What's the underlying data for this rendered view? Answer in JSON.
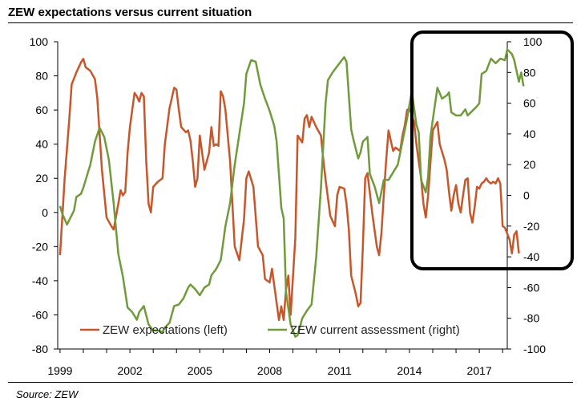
{
  "title": "ZEW expectations versus current situation",
  "source": "Source: ZEW",
  "colors": {
    "expectations": "#c8562b",
    "current": "#6f9b3b",
    "axis": "#000000",
    "highlight": "#000000"
  },
  "chart_data": {
    "type": "line",
    "title": "ZEW expectations versus current situation",
    "x_tick_labels": [
      "1999",
      "2002",
      "2005",
      "2008",
      "2011",
      "2014",
      "2017"
    ],
    "x_ticks": [
      1999,
      2002,
      2005,
      2008,
      2011,
      2014,
      2017
    ],
    "xlim": [
      1998.9,
      2018.2
    ],
    "left_axis": {
      "ylim": [
        -80,
        100
      ],
      "ticks": [
        -80,
        -60,
        -40,
        -20,
        0,
        20,
        40,
        60,
        80,
        100
      ]
    },
    "right_axis": {
      "ylim": [
        -100,
        100
      ],
      "ticks": [
        -100,
        -80,
        -60,
        -40,
        -20,
        0,
        20,
        40,
        60,
        80,
        100
      ]
    },
    "legend": [
      "ZEW expectations (left)",
      "ZEW current assessment (right)"
    ],
    "legend_position": "bottom-center",
    "annotation": "highlight box around 2014-2018",
    "series": [
      {
        "name": "ZEW expectations (left)",
        "axis": "left",
        "points": [
          [
            1999.0,
            -25
          ],
          [
            1999.2,
            20
          ],
          [
            1999.4,
            55
          ],
          [
            1999.5,
            75
          ],
          [
            1999.7,
            82
          ],
          [
            1999.9,
            88
          ],
          [
            2000.0,
            90
          ],
          [
            2000.1,
            85
          ],
          [
            2000.3,
            83
          ],
          [
            2000.5,
            78
          ],
          [
            2000.6,
            67
          ],
          [
            2000.8,
            25
          ],
          [
            2001.0,
            -3
          ],
          [
            2001.2,
            -8
          ],
          [
            2001.3,
            -10
          ],
          [
            2001.5,
            5
          ],
          [
            2001.6,
            13
          ],
          [
            2001.7,
            10
          ],
          [
            2001.8,
            12
          ],
          [
            2001.9,
            35
          ],
          [
            2002.0,
            50
          ],
          [
            2002.2,
            70
          ],
          [
            2002.3,
            68
          ],
          [
            2002.4,
            65
          ],
          [
            2002.5,
            70
          ],
          [
            2002.6,
            68
          ],
          [
            2002.7,
            30
          ],
          [
            2002.8,
            5
          ],
          [
            2002.9,
            0
          ],
          [
            2003.0,
            15
          ],
          [
            2003.2,
            18
          ],
          [
            2003.4,
            20
          ],
          [
            2003.5,
            40
          ],
          [
            2003.7,
            61
          ],
          [
            2003.9,
            73
          ],
          [
            2004.0,
            72
          ],
          [
            2004.1,
            60
          ],
          [
            2004.2,
            50
          ],
          [
            2004.4,
            47
          ],
          [
            2004.5,
            48
          ],
          [
            2004.6,
            42
          ],
          [
            2004.7,
            30
          ],
          [
            2004.8,
            15
          ],
          [
            2004.9,
            20
          ],
          [
            2005.0,
            45
          ],
          [
            2005.2,
            25
          ],
          [
            2005.4,
            35
          ],
          [
            2005.5,
            50
          ],
          [
            2005.6,
            39
          ],
          [
            2005.7,
            40
          ],
          [
            2005.8,
            39
          ],
          [
            2005.9,
            71
          ],
          [
            2006.0,
            68
          ],
          [
            2006.1,
            60
          ],
          [
            2006.3,
            30
          ],
          [
            2006.5,
            -20
          ],
          [
            2006.7,
            -28
          ],
          [
            2006.9,
            -4
          ],
          [
            2007.0,
            20
          ],
          [
            2007.1,
            24
          ],
          [
            2007.3,
            15
          ],
          [
            2007.5,
            -20
          ],
          [
            2007.7,
            -25
          ],
          [
            2007.8,
            -39
          ],
          [
            2008.0,
            -41
          ],
          [
            2008.1,
            -33
          ],
          [
            2008.3,
            -53
          ],
          [
            2008.4,
            -63
          ],
          [
            2008.5,
            -55
          ],
          [
            2008.6,
            -63
          ],
          [
            2008.7,
            -45
          ],
          [
            2008.8,
            -37
          ],
          [
            2008.9,
            -60
          ],
          [
            2009.1,
            -15
          ],
          [
            2009.2,
            45
          ],
          [
            2009.4,
            41
          ],
          [
            2009.5,
            55
          ],
          [
            2009.6,
            57
          ],
          [
            2009.7,
            50
          ],
          [
            2009.8,
            56
          ],
          [
            2010.0,
            50
          ],
          [
            2010.2,
            45
          ],
          [
            2010.3,
            31
          ],
          [
            2010.4,
            19
          ],
          [
            2010.6,
            -2
          ],
          [
            2010.8,
            -8
          ],
          [
            2010.9,
            10
          ],
          [
            2011.0,
            15
          ],
          [
            2011.2,
            14
          ],
          [
            2011.3,
            5
          ],
          [
            2011.4,
            -10
          ],
          [
            2011.5,
            -37
          ],
          [
            2011.7,
            -48
          ],
          [
            2011.8,
            -55
          ],
          [
            2011.9,
            -53
          ],
          [
            2012.0,
            -20
          ],
          [
            2012.1,
            20
          ],
          [
            2012.2,
            23
          ],
          [
            2012.4,
            0
          ],
          [
            2012.6,
            -20
          ],
          [
            2012.7,
            -25
          ],
          [
            2012.8,
            -12
          ],
          [
            2012.9,
            10
          ],
          [
            2013.0,
            30
          ],
          [
            2013.1,
            48
          ],
          [
            2013.3,
            36
          ],
          [
            2013.4,
            38
          ],
          [
            2013.6,
            36
          ],
          [
            2013.7,
            45
          ],
          [
            2013.8,
            51
          ],
          [
            2013.9,
            60
          ],
          [
            2014.0,
            61
          ],
          [
            2014.2,
            53
          ],
          [
            2014.3,
            40
          ],
          [
            2014.4,
            30
          ],
          [
            2014.5,
            20
          ],
          [
            2014.6,
            5
          ],
          [
            2014.7,
            -3
          ],
          [
            2014.8,
            10
          ],
          [
            2014.9,
            29
          ],
          [
            2015.0,
            48
          ],
          [
            2015.2,
            53
          ],
          [
            2015.3,
            40
          ],
          [
            2015.5,
            31
          ],
          [
            2015.6,
            25
          ],
          [
            2015.7,
            12
          ],
          [
            2015.8,
            1
          ],
          [
            2015.9,
            10
          ],
          [
            2016.0,
            16
          ],
          [
            2016.1,
            5
          ],
          [
            2016.2,
            0
          ],
          [
            2016.3,
            10
          ],
          [
            2016.4,
            19
          ],
          [
            2016.5,
            20
          ],
          [
            2016.6,
            0
          ],
          [
            2016.7,
            -6
          ],
          [
            2016.8,
            3
          ],
          [
            2016.9,
            15
          ],
          [
            2017.0,
            14
          ],
          [
            2017.1,
            17
          ],
          [
            2017.2,
            18
          ],
          [
            2017.3,
            20
          ],
          [
            2017.4,
            18
          ],
          [
            2017.5,
            17
          ],
          [
            2017.6,
            18
          ],
          [
            2017.7,
            17
          ],
          [
            2017.8,
            20
          ],
          [
            2017.9,
            17
          ],
          [
            2018.0,
            -8
          ],
          [
            2018.1,
            -9
          ],
          [
            2018.3,
            -16
          ],
          [
            2018.4,
            -24
          ],
          [
            2018.5,
            -13
          ],
          [
            2018.6,
            -11
          ],
          [
            2018.7,
            -24
          ]
        ]
      },
      {
        "name": "ZEW current assessment (right)",
        "axis": "right",
        "points": [
          [
            1999.0,
            -7
          ],
          [
            1999.1,
            -12
          ],
          [
            1999.3,
            -19
          ],
          [
            1999.4,
            -16
          ],
          [
            1999.6,
            -10
          ],
          [
            1999.7,
            -1
          ],
          [
            1999.9,
            1
          ],
          [
            2000.0,
            5
          ],
          [
            2000.1,
            10
          ],
          [
            2000.3,
            20
          ],
          [
            2000.5,
            35
          ],
          [
            2000.7,
            44
          ],
          [
            2000.9,
            38
          ],
          [
            2001.1,
            23
          ],
          [
            2001.3,
            -5
          ],
          [
            2001.5,
            -38
          ],
          [
            2001.7,
            -53
          ],
          [
            2001.9,
            -73
          ],
          [
            2002.1,
            -76
          ],
          [
            2002.3,
            -81
          ],
          [
            2002.4,
            -76
          ],
          [
            2002.6,
            -72
          ],
          [
            2002.8,
            -84
          ],
          [
            2003.0,
            -88
          ],
          [
            2003.2,
            -88
          ],
          [
            2003.4,
            -89
          ],
          [
            2003.5,
            -86
          ],
          [
            2003.7,
            -83
          ],
          [
            2003.9,
            -72
          ],
          [
            2004.1,
            -71
          ],
          [
            2004.3,
            -67
          ],
          [
            2004.5,
            -60
          ],
          [
            2004.6,
            -58
          ],
          [
            2004.8,
            -61
          ],
          [
            2005.0,
            -65
          ],
          [
            2005.2,
            -60
          ],
          [
            2005.4,
            -58
          ],
          [
            2005.5,
            -52
          ],
          [
            2005.7,
            -48
          ],
          [
            2005.9,
            -42
          ],
          [
            2006.1,
            -20
          ],
          [
            2006.3,
            -5
          ],
          [
            2006.5,
            20
          ],
          [
            2006.7,
            40
          ],
          [
            2006.9,
            60
          ],
          [
            2007.0,
            79
          ],
          [
            2007.2,
            88
          ],
          [
            2007.4,
            87
          ],
          [
            2007.6,
            72
          ],
          [
            2007.8,
            63
          ],
          [
            2008.0,
            55
          ],
          [
            2008.2,
            45
          ],
          [
            2008.3,
            35
          ],
          [
            2008.5,
            -8
          ],
          [
            2008.6,
            -15
          ],
          [
            2008.7,
            -63
          ],
          [
            2008.9,
            -84
          ],
          [
            2009.1,
            -92
          ],
          [
            2009.2,
            -91
          ],
          [
            2009.4,
            -80
          ],
          [
            2009.6,
            -75
          ],
          [
            2009.8,
            -71
          ],
          [
            2010.0,
            -40
          ],
          [
            2010.2,
            5
          ],
          [
            2010.4,
            60
          ],
          [
            2010.5,
            75
          ],
          [
            2010.7,
            80
          ],
          [
            2010.9,
            84
          ],
          [
            2011.0,
            86
          ],
          [
            2011.2,
            90
          ],
          [
            2011.3,
            87
          ],
          [
            2011.5,
            43
          ],
          [
            2011.6,
            36
          ],
          [
            2011.8,
            24
          ],
          [
            2011.9,
            28
          ],
          [
            2012.0,
            35
          ],
          [
            2012.2,
            38
          ],
          [
            2012.3,
            14
          ],
          [
            2012.5,
            6
          ],
          [
            2012.7,
            -5
          ],
          [
            2012.9,
            10
          ],
          [
            2013.1,
            10
          ],
          [
            2013.3,
            15
          ],
          [
            2013.5,
            20
          ],
          [
            2013.7,
            35
          ],
          [
            2013.9,
            50
          ],
          [
            2014.1,
            68
          ],
          [
            2014.3,
            46
          ],
          [
            2014.4,
            41
          ],
          [
            2014.5,
            10
          ],
          [
            2014.7,
            2
          ],
          [
            2014.8,
            12
          ],
          [
            2014.9,
            38
          ],
          [
            2015.0,
            49
          ],
          [
            2015.2,
            70
          ],
          [
            2015.4,
            63
          ],
          [
            2015.6,
            65
          ],
          [
            2015.7,
            67
          ],
          [
            2015.8,
            54
          ],
          [
            2016.0,
            52
          ],
          [
            2016.2,
            52
          ],
          [
            2016.4,
            56
          ],
          [
            2016.5,
            52
          ],
          [
            2016.7,
            55
          ],
          [
            2016.9,
            58
          ],
          [
            2017.0,
            60
          ],
          [
            2017.1,
            79
          ],
          [
            2017.3,
            81
          ],
          [
            2017.5,
            89
          ],
          [
            2017.7,
            86
          ],
          [
            2017.9,
            89
          ],
          [
            2018.1,
            88
          ],
          [
            2018.2,
            95
          ],
          [
            2018.4,
            92
          ],
          [
            2018.5,
            88
          ],
          [
            2018.7,
            74
          ],
          [
            2018.8,
            80
          ],
          [
            2018.9,
            71
          ]
        ]
      }
    ]
  }
}
